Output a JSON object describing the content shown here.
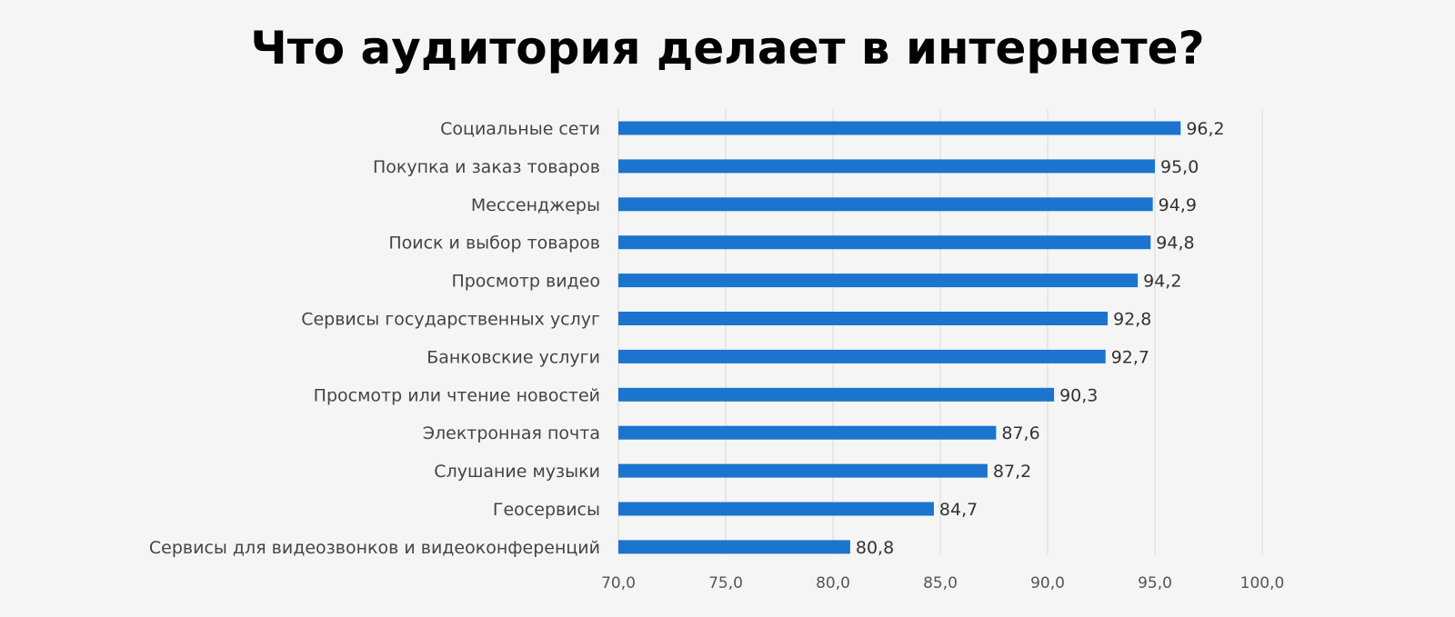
{
  "chart_data": {
    "type": "bar",
    "orientation": "horizontal",
    "title": "Что аудитория делает в интернете?",
    "categories": [
      "Социальные сети",
      "Покупка и заказ товаров",
      "Мессенджеры",
      "Поиск и выбор товаров",
      "Просмотр видео",
      "Сервисы государственных услуг",
      "Банковские услуги",
      "Просмотр или чтение новостей",
      "Электронная почта",
      "Слушание музыки",
      "Геосервисы",
      "Сервисы для видеозвонков и видеоконференций"
    ],
    "values": [
      96.2,
      95.0,
      94.9,
      94.8,
      94.2,
      92.8,
      92.7,
      90.3,
      87.6,
      87.2,
      84.7,
      80.8
    ],
    "value_labels": [
      "96,2",
      "95,0",
      "94,9",
      "94,8",
      "94,2",
      "92,8",
      "92,7",
      "90,3",
      "87,6",
      "87,2",
      "84,7",
      "80,8"
    ],
    "xlim": [
      70,
      100
    ],
    "x_ticks": [
      70,
      75,
      80,
      85,
      90,
      95,
      100
    ],
    "x_tick_labels": [
      "70,0",
      "75,0",
      "80,0",
      "85,0",
      "90,0",
      "95,0",
      "100,0"
    ],
    "xlabel": "",
    "ylabel": "",
    "grid": "vertical",
    "legend": "none",
    "bar_color": "#1b74cd",
    "grid_color": "#d9d9d9"
  }
}
